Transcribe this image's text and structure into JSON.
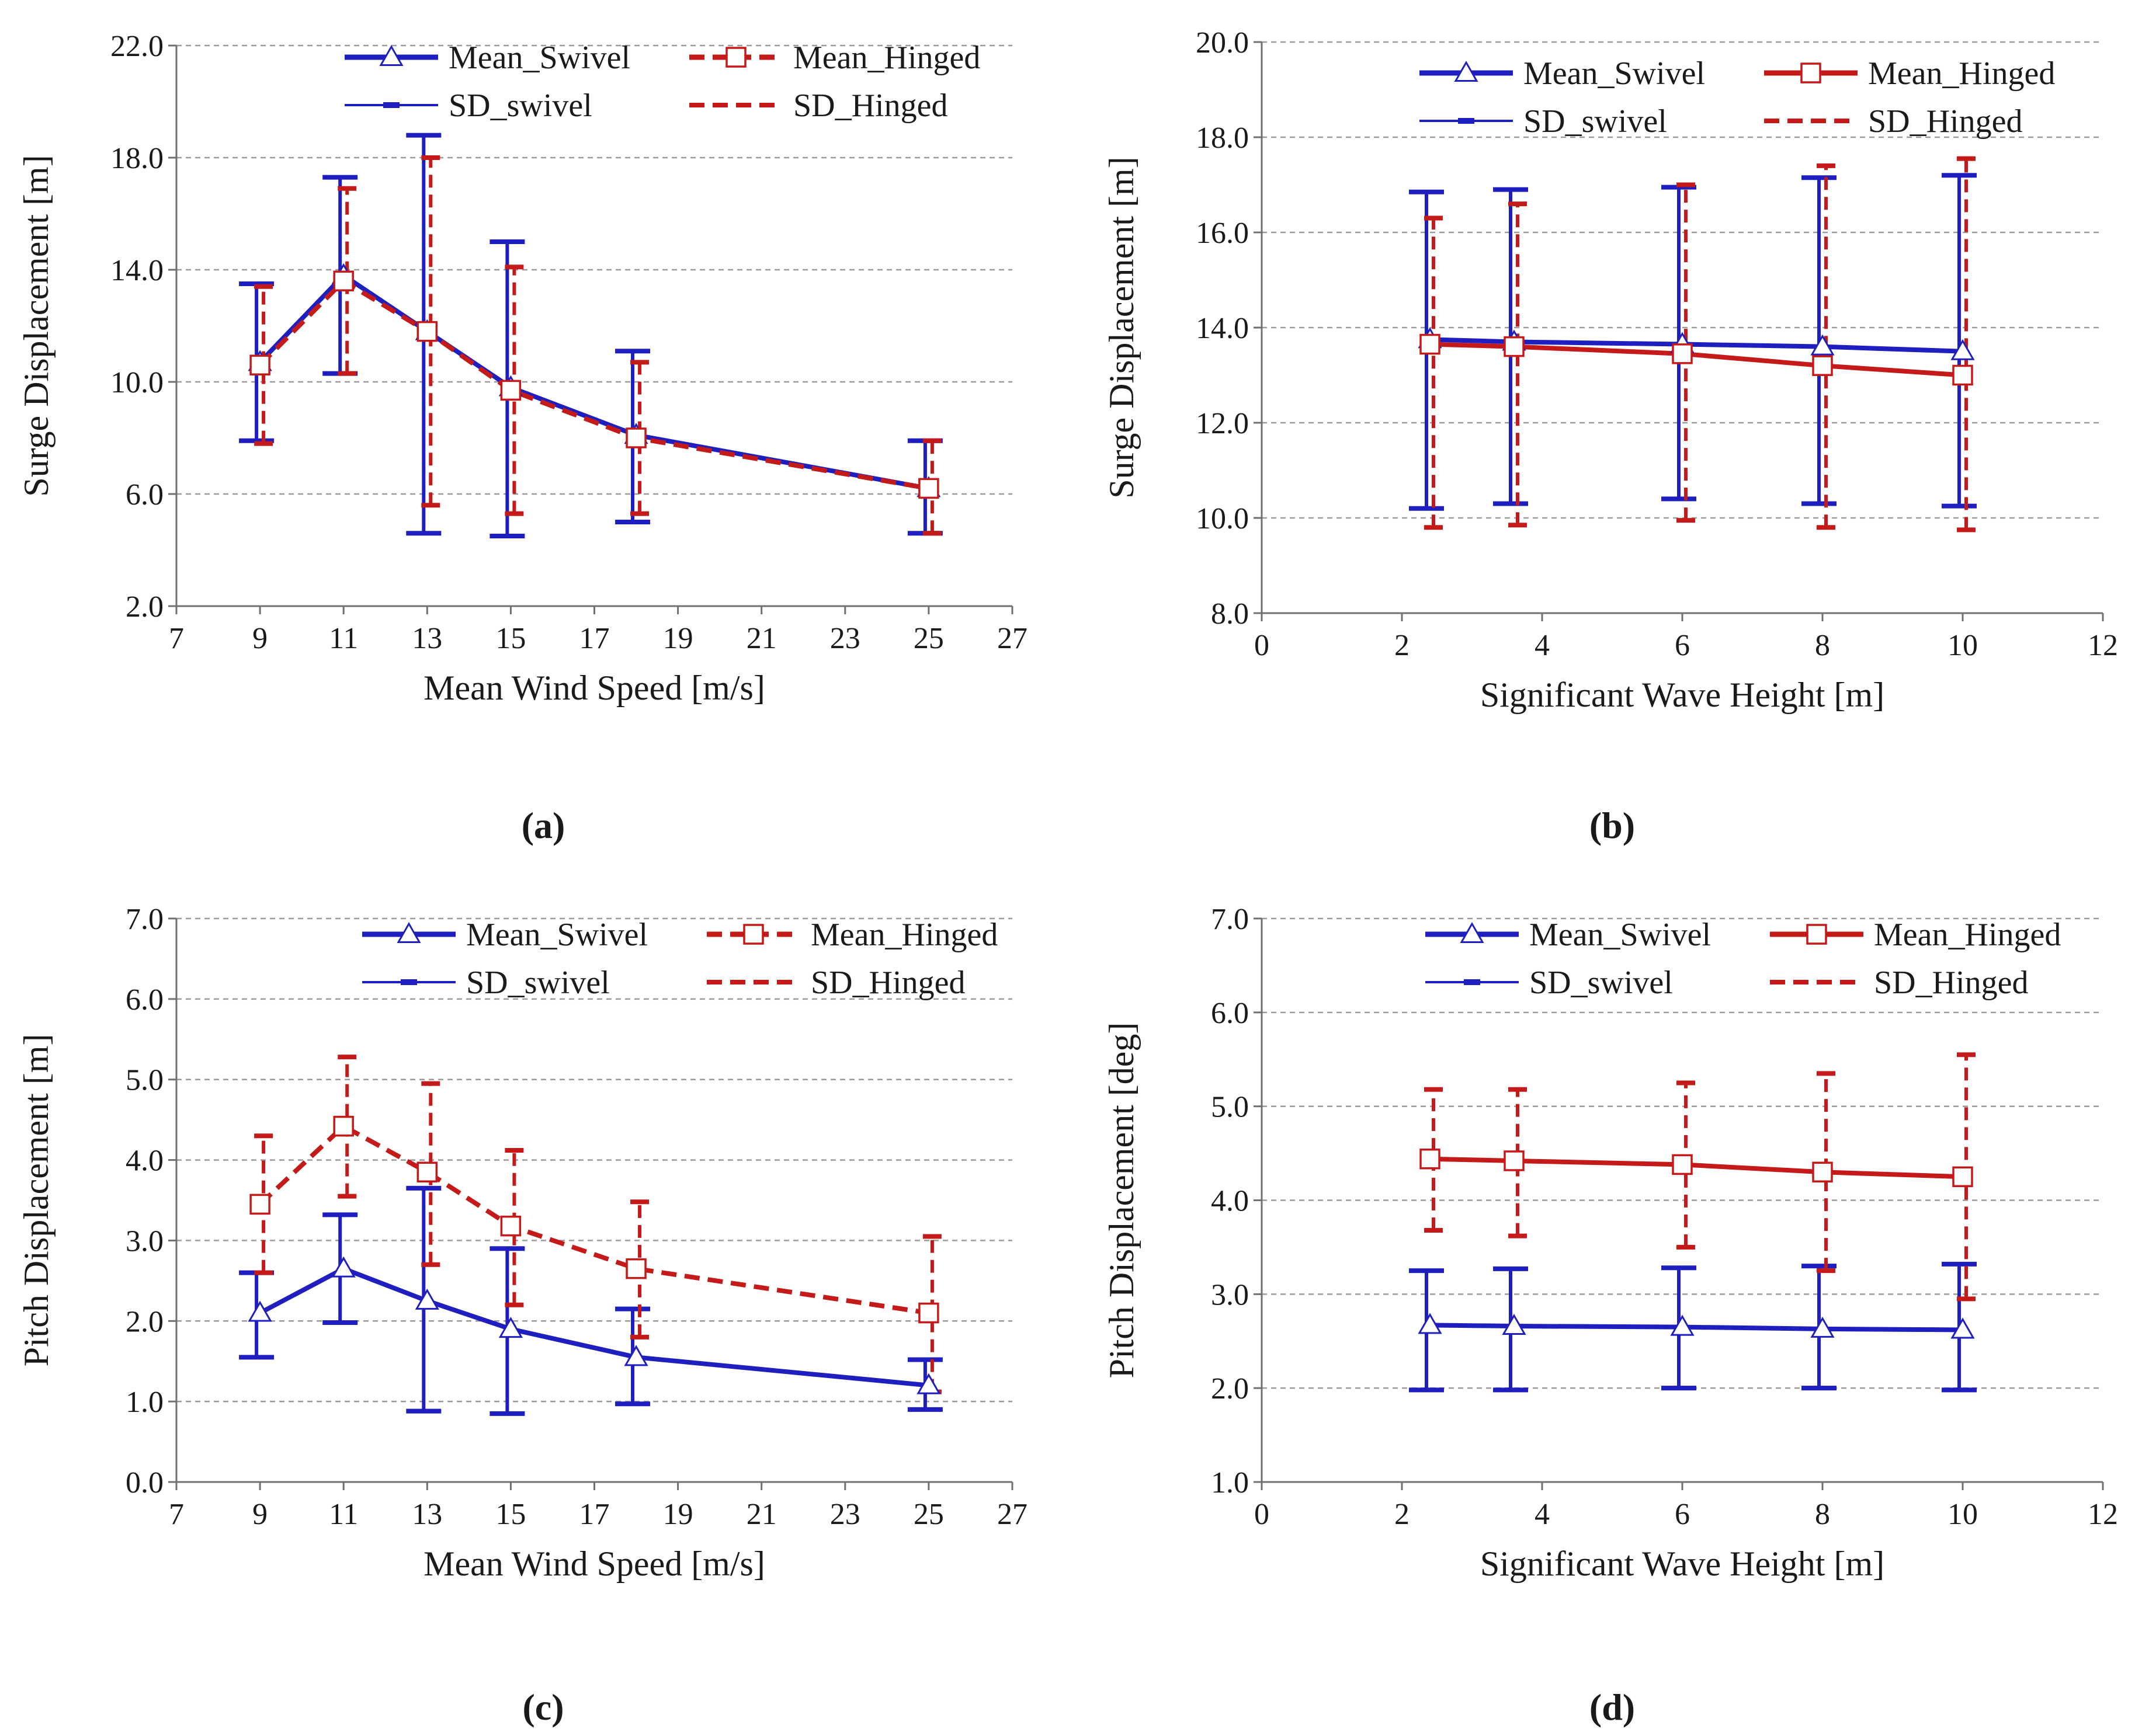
{
  "colors": {
    "swivel": "#1f1fbf",
    "hinged": "#c41a1a",
    "grid": "#9a9a9a",
    "axis": "#707070"
  },
  "chart_data": [
    {
      "id": "a",
      "type": "line",
      "panel_label": "(a)",
      "xlabel": "Mean Wind Speed [m/s]",
      "ylabel": "Surge Displacement  [m]",
      "xlim": [
        7,
        27
      ],
      "ylim": [
        2,
        22
      ],
      "xticks": [
        7,
        9,
        11,
        13,
        15,
        17,
        19,
        21,
        23,
        25,
        27
      ],
      "yticks": [
        2,
        6,
        10,
        14,
        18,
        22
      ],
      "ytick_labels": [
        "2.0",
        "6.0",
        "10.0",
        "14.0",
        "18.0",
        "22.0"
      ],
      "x": [
        9,
        11,
        13,
        15,
        18,
        25
      ],
      "series": [
        {
          "name": "Mean_Swivel",
          "key": "swivel",
          "values": [
            10.7,
            13.8,
            11.8,
            9.8,
            8.1,
            6.2
          ],
          "sd_low": [
            7.9,
            10.3,
            4.6,
            4.5,
            5.0,
            4.6
          ],
          "sd_high": [
            13.5,
            17.3,
            18.8,
            15.0,
            11.1,
            7.9
          ]
        },
        {
          "name": "Mean_Hinged",
          "key": "hinged",
          "values": [
            10.6,
            13.6,
            11.8,
            9.7,
            8.0,
            6.2
          ],
          "sd_low": [
            7.8,
            10.3,
            5.6,
            5.3,
            5.3,
            4.6
          ],
          "sd_high": [
            13.4,
            16.9,
            18.0,
            14.1,
            10.7,
            7.9
          ]
        }
      ],
      "legend": [
        "Mean_Swivel",
        "Mean_Hinged",
        "SD_swivel",
        "SD_Hinged"
      ],
      "legend_position": "top",
      "mean_dashed": true
    },
    {
      "id": "b",
      "type": "line",
      "panel_label": "(b)",
      "xlabel": "Significant Wave Height  [m]",
      "ylabel": "Surge Displacement  [m]",
      "xlim": [
        0,
        12
      ],
      "ylim": [
        8,
        20
      ],
      "xticks": [
        0,
        2,
        4,
        6,
        8,
        10,
        12
      ],
      "yticks": [
        8,
        10,
        12,
        14,
        16,
        18,
        20
      ],
      "ytick_labels": [
        "8.0",
        "10.0",
        "12.0",
        "14.0",
        "16.0",
        "18.0",
        "20.0"
      ],
      "x": [
        2.4,
        3.6,
        6,
        8,
        10
      ],
      "series": [
        {
          "name": "Mean_Swivel",
          "key": "swivel",
          "values": [
            13.75,
            13.7,
            13.65,
            13.6,
            13.5
          ],
          "sd_low": [
            10.2,
            10.3,
            10.4,
            10.3,
            10.25
          ],
          "sd_high": [
            16.85,
            16.9,
            16.95,
            17.15,
            17.2
          ]
        },
        {
          "name": "Mean_Hinged",
          "key": "hinged",
          "values": [
            13.65,
            13.6,
            13.45,
            13.2,
            13.0
          ],
          "sd_low": [
            9.8,
            9.85,
            9.95,
            9.8,
            9.75
          ],
          "sd_high": [
            16.3,
            16.6,
            17.0,
            17.4,
            17.55
          ]
        }
      ],
      "legend": [
        "Mean_Swivel",
        "Mean_Hinged",
        "SD_swivel",
        "SD_Hinged"
      ],
      "legend_position": "top",
      "mean_dashed": false
    },
    {
      "id": "c",
      "type": "line",
      "panel_label": "(c)",
      "xlabel": "Mean Wind Speed [m/s]",
      "ylabel": "Pitch Displacement  [m]",
      "xlim": [
        7,
        27
      ],
      "ylim": [
        0,
        7
      ],
      "xticks": [
        7,
        9,
        11,
        13,
        15,
        17,
        19,
        21,
        23,
        25,
        27
      ],
      "yticks": [
        0,
        1,
        2,
        3,
        4,
        5,
        6,
        7
      ],
      "ytick_labels": [
        "0.0",
        "1.0",
        "2.0",
        "3.0",
        "4.0",
        "5.0",
        "6.0",
        "7.0"
      ],
      "x": [
        9,
        11,
        13,
        15,
        18,
        25
      ],
      "series": [
        {
          "name": "Mean_Swivel",
          "key": "swivel",
          "values": [
            2.1,
            2.65,
            2.25,
            1.9,
            1.55,
            1.2
          ],
          "sd_low": [
            1.55,
            1.98,
            0.88,
            0.85,
            0.97,
            0.9
          ],
          "sd_high": [
            2.6,
            3.32,
            3.65,
            2.9,
            2.15,
            1.52
          ]
        },
        {
          "name": "Mean_Hinged",
          "key": "hinged",
          "values": [
            3.45,
            4.42,
            3.85,
            3.18,
            2.65,
            2.1
          ],
          "sd_low": [
            2.6,
            3.55,
            2.7,
            2.2,
            1.8,
            1.12
          ],
          "sd_high": [
            4.3,
            5.28,
            4.95,
            4.12,
            3.48,
            3.05
          ]
        }
      ],
      "legend": [
        "Mean_Swivel",
        "Mean_Hinged",
        "SD_swivel",
        "SD_Hinged"
      ],
      "legend_position": "top",
      "mean_dashed": true
    },
    {
      "id": "d",
      "type": "line",
      "panel_label": "(d)",
      "xlabel": "Significant Wave Height  [m]",
      "ylabel": "Pitch Displacement  [deg]",
      "xlim": [
        0,
        12
      ],
      "ylim": [
        1,
        7
      ],
      "xticks": [
        0,
        2,
        4,
        6,
        8,
        10,
        12
      ],
      "yticks": [
        1,
        2,
        3,
        4,
        5,
        6,
        7
      ],
      "ytick_labels": [
        "1.0",
        "2.0",
        "3.0",
        "4.0",
        "5.0",
        "6.0",
        "7.0"
      ],
      "x": [
        2.4,
        3.6,
        6,
        8,
        10
      ],
      "series": [
        {
          "name": "Mean_Swivel",
          "key": "swivel",
          "values": [
            2.67,
            2.66,
            2.65,
            2.63,
            2.62
          ],
          "sd_low": [
            1.98,
            1.98,
            2.0,
            2.0,
            1.98
          ],
          "sd_high": [
            3.25,
            3.27,
            3.28,
            3.3,
            3.32
          ]
        },
        {
          "name": "Mean_Hinged",
          "key": "hinged",
          "values": [
            4.44,
            4.42,
            4.38,
            4.3,
            4.25
          ],
          "sd_low": [
            3.68,
            3.62,
            3.5,
            3.25,
            2.95
          ],
          "sd_high": [
            5.18,
            5.18,
            5.25,
            5.35,
            5.55
          ]
        }
      ],
      "legend": [
        "Mean_Swivel",
        "Mean_Hinged",
        "SD_swivel",
        "SD_Hinged"
      ],
      "legend_position": "top",
      "mean_dashed": false
    }
  ]
}
